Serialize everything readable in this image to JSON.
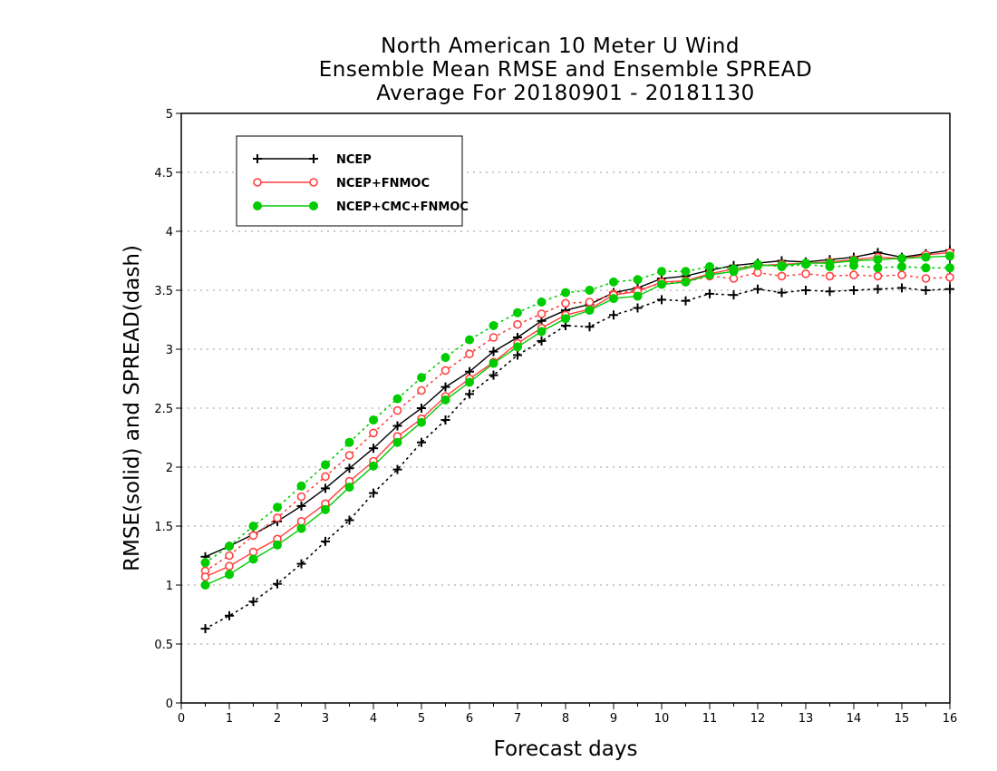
{
  "title_lines": [
    "North American 10 Meter U Wind",
    "Ensemble Mean RMSE and Ensemble SPREAD",
    "Average For 20180901 - 20181130"
  ],
  "chart_data": {
    "type": "line",
    "xlabel": "Forecast days",
    "ylabel": "RMSE(solid) and SPREAD(dash)",
    "xlim": [
      0,
      16
    ],
    "ylim": [
      0,
      5
    ],
    "x_ticks": [
      0,
      1,
      2,
      3,
      4,
      5,
      6,
      7,
      8,
      9,
      10,
      11,
      12,
      13,
      14,
      15,
      16
    ],
    "y_ticks": [
      0,
      0.5,
      1,
      1.5,
      2,
      2.5,
      3,
      3.5,
      4,
      4.5,
      5
    ],
    "y_tick_labels": [
      "0",
      "0.5",
      "1",
      "1.5",
      "2",
      "2.5",
      "3",
      "3.5",
      "4",
      "4.5",
      "5"
    ],
    "grid": "horizontal dotted",
    "legend_position": "top-left",
    "x": [
      0.5,
      1,
      1.5,
      2,
      2.5,
      3,
      3.5,
      4,
      4.5,
      5,
      5.5,
      6,
      6.5,
      7,
      7.5,
      8,
      8.5,
      9,
      9.5,
      10,
      10.5,
      11,
      11.5,
      12,
      12.5,
      13,
      13.5,
      14,
      14.5,
      15,
      15.5,
      16
    ],
    "series": [
      {
        "name": "NCEP",
        "color": "#000000",
        "marker": "plus",
        "rmse": [
          1.24,
          1.33,
          1.43,
          1.54,
          1.67,
          1.82,
          1.99,
          2.16,
          2.35,
          2.5,
          2.68,
          2.81,
          2.98,
          3.1,
          3.24,
          3.33,
          3.38,
          3.48,
          3.52,
          3.6,
          3.62,
          3.67,
          3.71,
          3.73,
          3.75,
          3.74,
          3.76,
          3.78,
          3.82,
          3.78,
          3.81,
          3.84
        ],
        "spread": [
          0.63,
          0.74,
          0.86,
          1.01,
          1.18,
          1.37,
          1.55,
          1.78,
          1.98,
          2.21,
          2.4,
          2.62,
          2.78,
          2.95,
          3.07,
          3.2,
          3.19,
          3.29,
          3.35,
          3.42,
          3.41,
          3.47,
          3.46,
          3.51,
          3.48,
          3.5,
          3.49,
          3.5,
          3.51,
          3.52,
          3.5,
          3.51
        ]
      },
      {
        "name": "NCEP+FNMOC",
        "color": "#ff4040",
        "marker": "circle-open",
        "rmse": [
          1.07,
          1.16,
          1.28,
          1.39,
          1.54,
          1.69,
          1.88,
          2.05,
          2.26,
          2.41,
          2.6,
          2.75,
          2.89,
          3.05,
          3.18,
          3.29,
          3.34,
          3.46,
          3.49,
          3.57,
          3.58,
          3.64,
          3.68,
          3.71,
          3.72,
          3.73,
          3.74,
          3.76,
          3.78,
          3.77,
          3.8,
          3.82
        ],
        "spread": [
          1.12,
          1.25,
          1.42,
          1.57,
          1.75,
          1.92,
          2.1,
          2.29,
          2.48,
          2.65,
          2.82,
          2.96,
          3.1,
          3.21,
          3.3,
          3.39,
          3.4,
          3.47,
          3.5,
          3.56,
          3.57,
          3.62,
          3.6,
          3.65,
          3.62,
          3.64,
          3.62,
          3.63,
          3.62,
          3.63,
          3.6,
          3.61
        ]
      },
      {
        "name": "NCEP+CMC+FNMOC",
        "color": "#00cc00",
        "marker": "circle-filled",
        "rmse": [
          1.0,
          1.09,
          1.22,
          1.34,
          1.48,
          1.64,
          1.83,
          2.01,
          2.21,
          2.38,
          2.57,
          2.72,
          2.88,
          3.02,
          3.15,
          3.26,
          3.33,
          3.43,
          3.45,
          3.55,
          3.57,
          3.63,
          3.66,
          3.71,
          3.71,
          3.73,
          3.73,
          3.75,
          3.76,
          3.77,
          3.78,
          3.79
        ],
        "spread": [
          1.19,
          1.33,
          1.5,
          1.66,
          1.84,
          2.02,
          2.21,
          2.4,
          2.58,
          2.76,
          2.93,
          3.08,
          3.2,
          3.31,
          3.4,
          3.48,
          3.5,
          3.57,
          3.59,
          3.66,
          3.66,
          3.7,
          3.68,
          3.72,
          3.7,
          3.72,
          3.7,
          3.71,
          3.69,
          3.7,
          3.69,
          3.69
        ]
      }
    ]
  }
}
